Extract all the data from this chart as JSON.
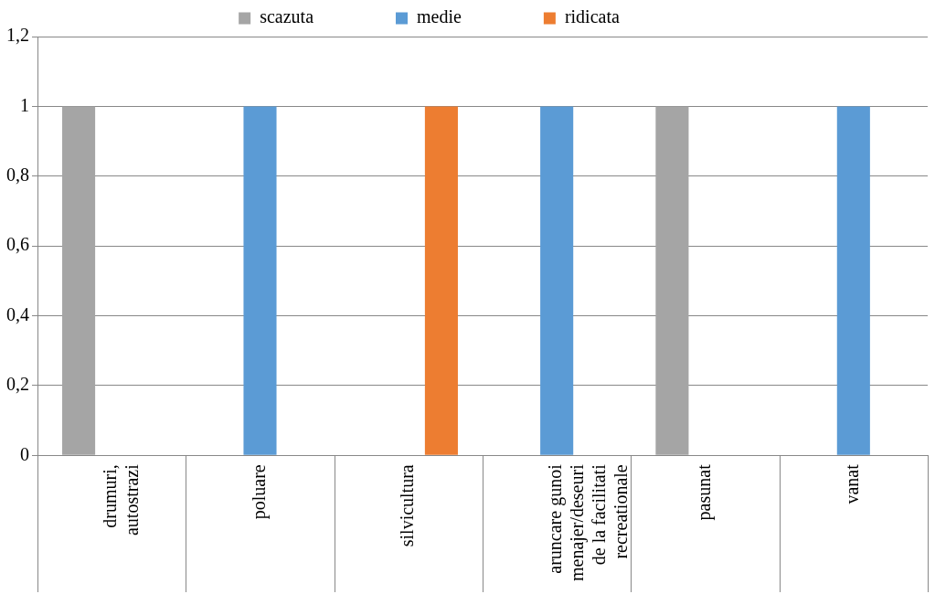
{
  "chart_data": {
    "type": "bar",
    "categories": [
      "drumuri, autostrazi",
      "poluare",
      "silvicultura",
      "aruncare gunoi menajer/deseuri de la facilitati recreationale",
      "pasunat",
      "vanat"
    ],
    "series": [
      {
        "name": "scazuta",
        "color": "#a5a5a5",
        "values": [
          1,
          null,
          null,
          null,
          1,
          null
        ]
      },
      {
        "name": "medie",
        "color": "#5b9bd5",
        "values": [
          null,
          1,
          null,
          1,
          null,
          1
        ]
      },
      {
        "name": "ridicata",
        "color": "#ed7d31",
        "values": [
          null,
          null,
          1,
          null,
          null,
          null
        ]
      }
    ],
    "ylim": [
      0,
      1.2
    ],
    "yticks": [
      {
        "value": 0,
        "label": "0"
      },
      {
        "value": 0.2,
        "label": "0,2"
      },
      {
        "value": 0.4,
        "label": "0,4"
      },
      {
        "value": 0.6,
        "label": "0,6"
      },
      {
        "value": 0.8,
        "label": "0,8"
      },
      {
        "value": 1,
        "label": "1"
      },
      {
        "value": 1.2,
        "label": "1,2"
      }
    ],
    "grid": "y",
    "legend": "top"
  }
}
